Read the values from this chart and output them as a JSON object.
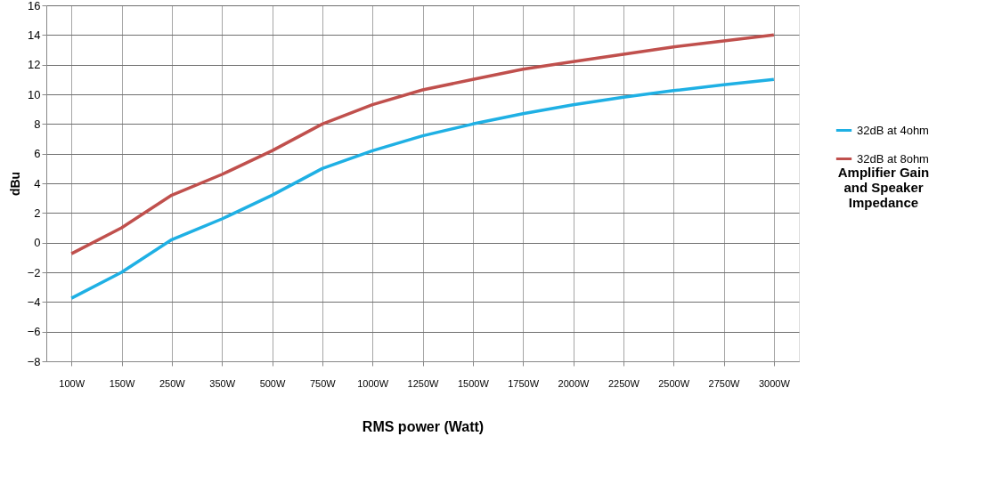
{
  "chart_data": {
    "type": "line",
    "title": "Amplifier Gain and Speaker Impedance",
    "xlabel": "RMS power (Watt)",
    "ylabel": "dBu",
    "categories": [
      "100W",
      "150W",
      "250W",
      "350W",
      "500W",
      "750W",
      "1000W",
      "1250W",
      "1500W",
      "1750W",
      "2000W",
      "2250W",
      "2500W",
      "2750W",
      "3000W"
    ],
    "series": [
      {
        "name": "32dB at 4ohm",
        "color": "#1fb0e4",
        "values": [
          -3.75,
          -2,
          0.2,
          1.6,
          3.2,
          5.0,
          6.2,
          7.2,
          8.0,
          8.7,
          9.3,
          9.8,
          10.25,
          10.65,
          11.0
        ]
      },
      {
        "name": "32dB at 8ohm",
        "color": "#c0504d",
        "values": [
          -0.75,
          1.0,
          3.2,
          4.6,
          6.2,
          8.0,
          9.3,
          10.3,
          11.0,
          11.7,
          12.2,
          12.7,
          13.2,
          13.6,
          14.0
        ]
      }
    ],
    "ylim": [
      -8,
      16
    ],
    "yticks": [
      -8,
      -6,
      -4,
      -2,
      0,
      2,
      4,
      6,
      8,
      10,
      12,
      14,
      16
    ],
    "grid": true,
    "legend": "right",
    "marker": "none",
    "line_style": "solid"
  }
}
